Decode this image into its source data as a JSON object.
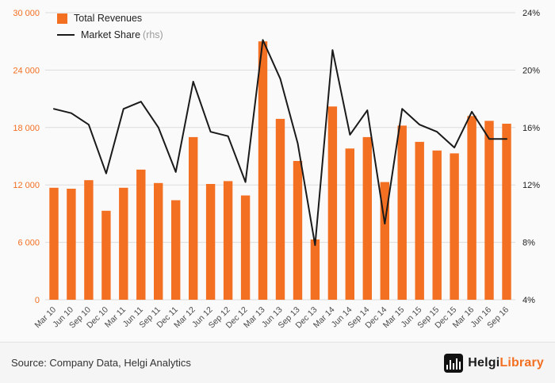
{
  "legend": {
    "revenues_label": "Total Revenues",
    "share_label": "Market Share",
    "share_suffix": "(rhs)"
  },
  "footer": {
    "source": "Source: Company Data, Helgi Analytics",
    "logo_text_1": "Helgi",
    "logo_text_2": "Library"
  },
  "colors": {
    "bar": "#f36f21",
    "line": "#1a1a1a",
    "left_axis": "#f36f21",
    "right_axis": "#222222",
    "grid": "#dcdcdc",
    "x_labels": "#4a4a4a"
  },
  "chart_data": {
    "type": "bar",
    "title": "",
    "grid": true,
    "legend_position": "top-left",
    "categories": [
      "Mar 10",
      "Jun 10",
      "Sep 10",
      "Dec 10",
      "Mar 11",
      "Jun 11",
      "Sep 11",
      "Dec 11",
      "Mar 12",
      "Jun 12",
      "Sep 12",
      "Dec 12",
      "Mar 13",
      "Jun 13",
      "Sep 13",
      "Dec 13",
      "Mar 14",
      "Jun 14",
      "Sep 14",
      "Dec 14",
      "Mar 15",
      "Jun 15",
      "Sep 15",
      "Dec 15",
      "Mar 16",
      "Jun 16",
      "Sep 16"
    ],
    "series": [
      {
        "name": "Total Revenues",
        "type": "bar",
        "axis": "left",
        "values": [
          11700,
          11600,
          12500,
          9300,
          11700,
          13600,
          12200,
          10400,
          17000,
          12100,
          12400,
          10900,
          27000,
          18900,
          14500,
          6300,
          20200,
          15800,
          17000,
          12300,
          18200,
          16500,
          15600,
          15300,
          19200,
          18700,
          18400
        ]
      },
      {
        "name": "Market Share (rhs)",
        "type": "line",
        "axis": "right",
        "values": [
          17.3,
          17.0,
          16.2,
          12.8,
          17.3,
          17.8,
          16.0,
          12.9,
          19.2,
          15.7,
          15.4,
          12.2,
          22.1,
          19.4,
          14.9,
          7.8,
          21.4,
          15.5,
          17.2,
          9.3,
          17.3,
          16.2,
          15.7,
          14.6,
          17.1,
          15.2,
          15.2
        ]
      }
    ],
    "left_axis": {
      "range": [
        0,
        30000
      ],
      "ticks": [
        0,
        6000,
        12000,
        18000,
        24000,
        30000
      ],
      "tick_labels": [
        "0",
        "6 000",
        "12 000",
        "18 000",
        "24 000",
        "30 000"
      ]
    },
    "right_axis": {
      "range": [
        4,
        24
      ],
      "ticks": [
        4,
        8,
        12,
        16,
        20,
        24
      ],
      "tick_labels": [
        "4%",
        "8%",
        "12%",
        "16%",
        "20%",
        "24%"
      ]
    }
  }
}
